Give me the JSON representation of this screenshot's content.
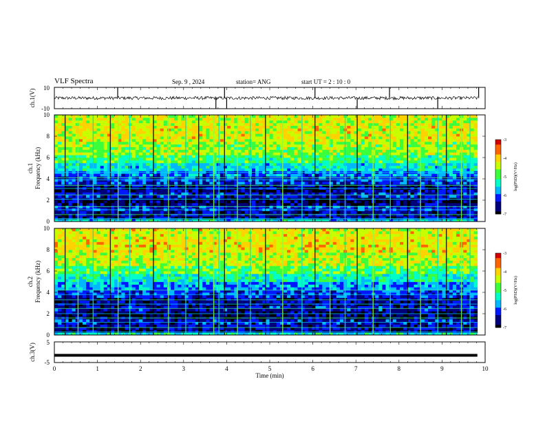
{
  "header": {
    "title": "VLF Spectra",
    "date": "Sep. 9 , 2024",
    "station": "station= ANG",
    "start": "start UT = 2 : 10 : 0"
  },
  "colors": {
    "background": "#ffffff",
    "axis": "#000000",
    "spectrogram_palette": [
      "#000000",
      "#00007a",
      "#0018ff",
      "#00b8ff",
      "#00ffc8",
      "#3cff3c",
      "#c8ff00",
      "#ffd200",
      "#ff6400",
      "#d20000"
    ]
  },
  "chart_data": [
    {
      "type": "line",
      "name": "ch1-waveform",
      "ylabel": "ch.1(V)",
      "ylim": [
        -10,
        10
      ],
      "yticks": [
        "10",
        "-10"
      ],
      "xlim": [
        0,
        10
      ],
      "baseline": 0,
      "noise_amplitude": 1.5,
      "spike_times_min": [
        1.47,
        3.75,
        3.95,
        4.0,
        6.05,
        7.03,
        7.78,
        8.9,
        9.85
      ],
      "grid": false
    },
    {
      "type": "heatmap",
      "name": "ch1-spectrogram",
      "ylabel_channel": "ch.1",
      "ylabel": "Frequency (kHz)",
      "ylim": [
        0,
        10
      ],
      "yticks": [
        "0",
        "2",
        "4",
        "6",
        "8",
        "10"
      ],
      "xlim": [
        0,
        10
      ],
      "x_data_end_min": 9.82,
      "colorbar": {
        "label": "log(PSD)(V²/Hz)",
        "range": [
          -7,
          -3
        ],
        "ticks": [
          "-3",
          "-4",
          "-5",
          "-6",
          "-7"
        ]
      },
      "bands": [
        {
          "from": 0,
          "to": 0.3,
          "level": 3.5
        },
        {
          "from": 0.3,
          "to": 1.0,
          "level": 1.2
        },
        {
          "from": 1.0,
          "to": 1.5,
          "level": 1.8
        },
        {
          "from": 1.5,
          "to": 2.2,
          "level": 0.8
        },
        {
          "from": 2.2,
          "to": 2.8,
          "level": 1.6
        },
        {
          "from": 2.8,
          "to": 3.5,
          "level": 1.0
        },
        {
          "from": 3.5,
          "to": 4.2,
          "level": 1.8
        },
        {
          "from": 4.2,
          "to": 4.8,
          "level": 2.6
        },
        {
          "from": 4.8,
          "to": 5.5,
          "level": 3.6
        },
        {
          "from": 5.5,
          "to": 6.3,
          "level": 4.6
        },
        {
          "from": 6.3,
          "to": 7.5,
          "level": 5.6
        },
        {
          "from": 7.5,
          "to": 9.0,
          "level": 6.4
        },
        {
          "from": 9.0,
          "to": 10.0,
          "level": 6.2
        }
      ],
      "horizontal_lines_khz": [
        0.3,
        0.65,
        1.1,
        1.4,
        2.1,
        2.5,
        3.1,
        3.4,
        3.9,
        4.1,
        4.6
      ],
      "sferic_times_min": [
        0.25,
        0.55,
        0.9,
        1.3,
        1.48,
        1.75,
        2.3,
        2.65,
        3.05,
        3.35,
        3.7,
        3.82,
        3.95,
        4.25,
        4.55,
        4.9,
        5.3,
        5.75,
        6.05,
        6.4,
        6.75,
        7.03,
        7.4,
        7.8,
        8.2,
        8.5,
        8.9,
        9.1,
        9.45,
        9.65
      ]
    },
    {
      "type": "heatmap",
      "name": "ch2-spectrogram",
      "ylabel_channel": "ch.2",
      "ylabel": "Frequency (kHz)",
      "ylim": [
        0,
        10
      ],
      "yticks": [
        "0",
        "2",
        "4",
        "6",
        "8",
        "10"
      ],
      "xlim": [
        0,
        10
      ],
      "x_data_end_min": 9.82,
      "colorbar": {
        "label": "log(PSD)(V²/Hz)",
        "range": [
          -7,
          -3
        ],
        "ticks": [
          "-3",
          "-4",
          "-5",
          "-6",
          "-7"
        ]
      },
      "bands": [
        {
          "from": 0,
          "to": 0.3,
          "level": 3.8
        },
        {
          "from": 0.3,
          "to": 1.0,
          "level": 1.2
        },
        {
          "from": 1.0,
          "to": 1.5,
          "level": 1.6
        },
        {
          "from": 1.5,
          "to": 2.2,
          "level": 0.7
        },
        {
          "from": 2.2,
          "to": 2.8,
          "level": 1.5
        },
        {
          "from": 2.8,
          "to": 3.5,
          "level": 1.2
        },
        {
          "from": 3.5,
          "to": 4.3,
          "level": 2.0
        },
        {
          "from": 4.3,
          "to": 5.0,
          "level": 2.8
        },
        {
          "from": 5.0,
          "to": 5.8,
          "level": 4.0
        },
        {
          "from": 5.8,
          "to": 6.5,
          "level": 5.0
        },
        {
          "from": 6.5,
          "to": 7.8,
          "level": 6.0
        },
        {
          "from": 7.8,
          "to": 9.0,
          "level": 6.6
        },
        {
          "from": 9.0,
          "to": 10.0,
          "level": 6.4
        }
      ],
      "horizontal_lines_khz": [
        0.3,
        0.7,
        1.2,
        1.6,
        2.0,
        2.5,
        2.9,
        3.3,
        3.8,
        4.2
      ],
      "sferic_times_min": [
        0.25,
        0.55,
        0.9,
        1.3,
        1.48,
        1.75,
        2.3,
        2.65,
        3.05,
        3.35,
        3.7,
        3.82,
        3.95,
        4.25,
        4.55,
        4.9,
        5.3,
        5.75,
        6.05,
        6.4,
        6.75,
        7.03,
        7.4,
        7.8,
        8.2,
        8.5,
        8.9,
        9.1,
        9.45,
        9.65
      ]
    },
    {
      "type": "line",
      "name": "ch3-waveform",
      "ylabel": "ch.3(V)",
      "ylim": [
        -5,
        5
      ],
      "yticks": [
        "5",
        "-5"
      ],
      "xlim": [
        0,
        10
      ],
      "constant_value": -1.5,
      "x_data_end_min": 9.82,
      "xlabel": "Time (min)",
      "xticks": [
        "0",
        "1",
        "2",
        "3",
        "4",
        "5",
        "6",
        "7",
        "8",
        "9",
        "10"
      ],
      "grid": false
    }
  ]
}
